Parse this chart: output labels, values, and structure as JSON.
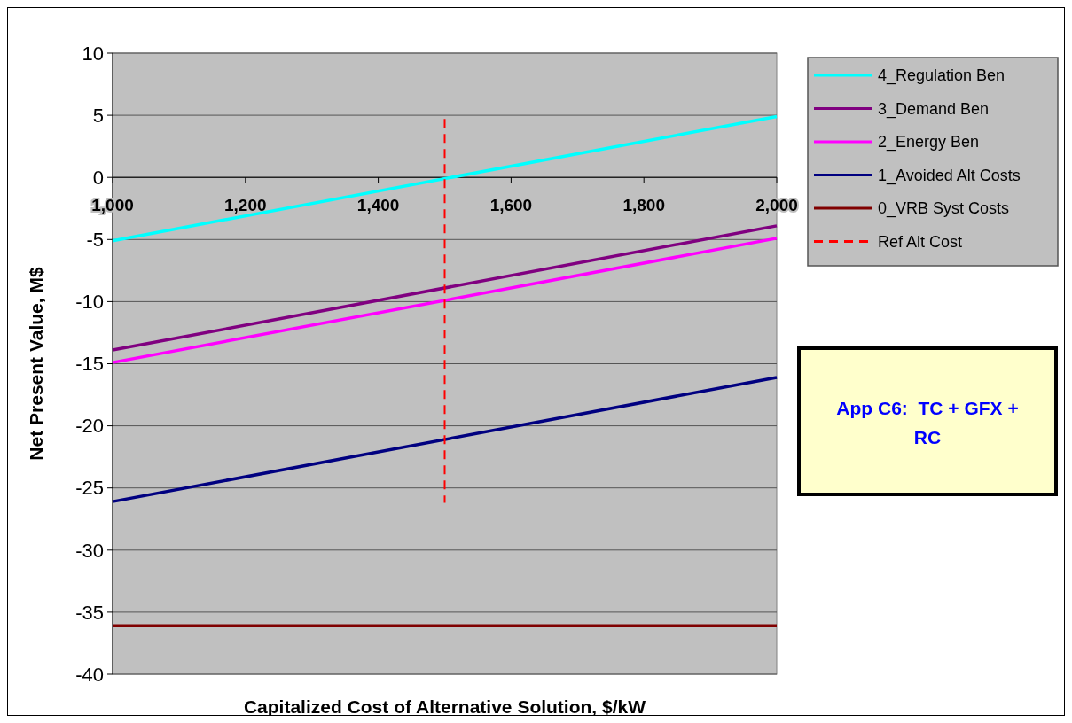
{
  "chart_data": {
    "type": "line",
    "xlabel": "Capitalized Cost of Alternative Solution, $/kW",
    "ylabel": "Net Present Value, M$",
    "x": [
      1000,
      2000
    ],
    "series": [
      {
        "name": "4_Regulation Ben",
        "color": "#00ffff",
        "values": [
          -5.1,
          4.9
        ]
      },
      {
        "name": "3_Demand Ben",
        "color": "#800080",
        "values": [
          -13.9,
          -3.9
        ]
      },
      {
        "name": "2_Energy Ben",
        "color": "#ff00ff",
        "values": [
          -14.9,
          -4.9
        ]
      },
      {
        "name": "1_Avoided Alt Costs",
        "color": "#000080",
        "values": [
          -26.1,
          -16.1
        ]
      },
      {
        "name": "0_VRB Syst Costs",
        "color": "#800000",
        "values": [
          -36.1,
          -36.1
        ]
      },
      {
        "name": "Ref Alt Cost",
        "color": "#ff0000",
        "x": [
          1500,
          1500
        ],
        "values": [
          4.7,
          -26.2
        ],
        "line_style": "dashed"
      }
    ],
    "xlim": [
      1000,
      2000
    ],
    "xticks": [
      {
        "value": 1000,
        "label": "1,000"
      },
      {
        "value": 1200,
        "label": "1,200"
      },
      {
        "value": 1400,
        "label": "1,400"
      },
      {
        "value": 1600,
        "label": "1,600"
      },
      {
        "value": 1800,
        "label": "1,800"
      },
      {
        "value": 2000,
        "label": "2,000"
      }
    ],
    "ylim": [
      -40,
      10
    ],
    "yticks": [
      -40,
      -35,
      -30,
      -25,
      -20,
      -15,
      -10,
      -5,
      0,
      5,
      10
    ],
    "grid": "y",
    "legend": "top right",
    "marker": "none",
    "line_style": "solid",
    "annotations": [
      "App C6:  TC + GFX + RC"
    ]
  }
}
